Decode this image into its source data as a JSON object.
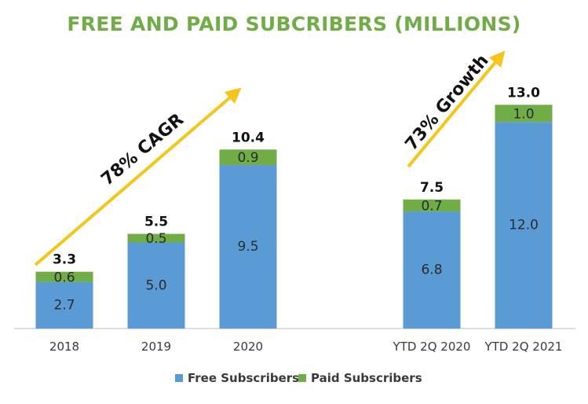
{
  "chart_data": {
    "type": "bar",
    "stacked": true,
    "title": "FREE AND PAID SUBCRIBERS (MILLIONS)",
    "categories": [
      "2018",
      "2019",
      "2020",
      "YTD 2Q 2020",
      "YTD 2Q 2021"
    ],
    "series": [
      {
        "name": "Free Subscribers",
        "color": "#5b9bd5",
        "values": [
          2.7,
          5.0,
          9.5,
          6.8,
          12.0
        ],
        "labels": [
          "2.7",
          "5.0",
          "9.5",
          "6.8",
          "12.0"
        ]
      },
      {
        "name": "Paid Subscribers",
        "color": "#70ad47",
        "values": [
          0.6,
          0.5,
          0.9,
          0.7,
          1.0
        ],
        "labels": [
          "0.6",
          "0.5",
          "0.9",
          "0.7",
          "1.0"
        ]
      }
    ],
    "totals": [
      3.3,
      5.5,
      10.4,
      7.5,
      13.0
    ],
    "total_labels": [
      "3.3",
      "5.5",
      "10.4",
      "7.5",
      "13.0"
    ],
    "ylim": [
      0,
      13.7
    ],
    "grid": false,
    "legend_position": "bottom",
    "annotations": [
      {
        "text": "78% CAGR",
        "color": "#f5c518"
      },
      {
        "text": "73% Growth",
        "color": "#f5c518"
      }
    ],
    "title_color": "#70ad47"
  }
}
